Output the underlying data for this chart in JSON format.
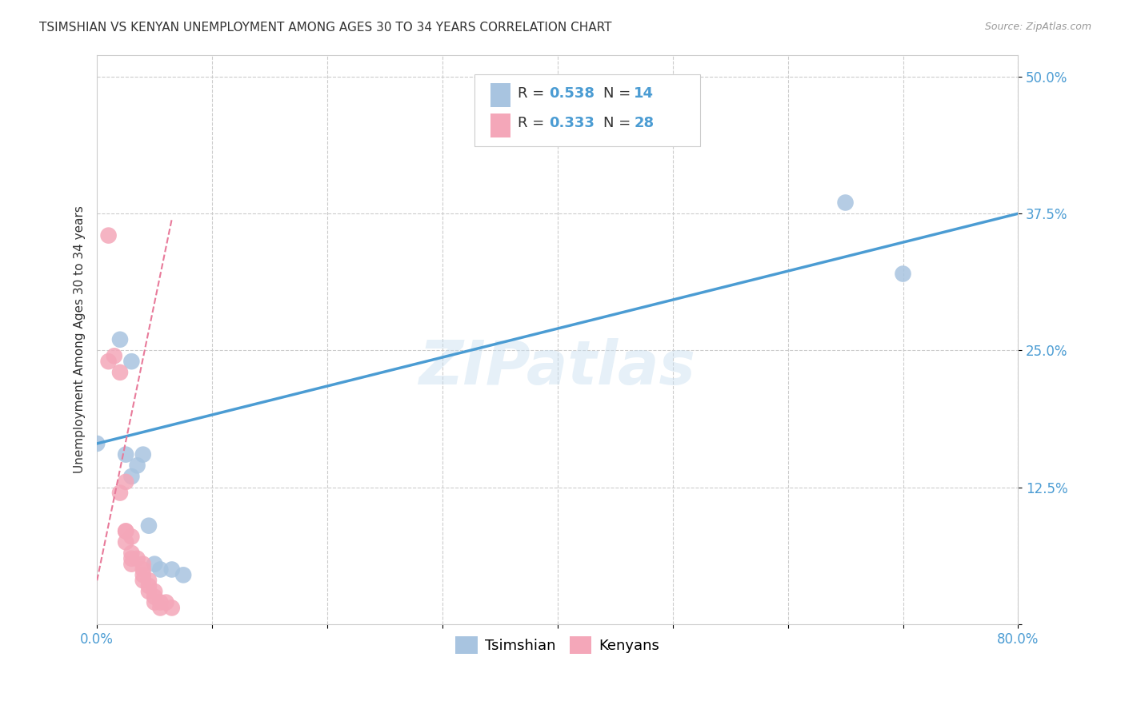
{
  "title": "TSIMSHIAN VS KENYAN UNEMPLOYMENT AMONG AGES 30 TO 34 YEARS CORRELATION CHART",
  "source": "Source: ZipAtlas.com",
  "ylabel": "Unemployment Among Ages 30 to 34 years",
  "xlim": [
    0.0,
    0.8
  ],
  "ylim": [
    0.0,
    0.52
  ],
  "xticks": [
    0.0,
    0.1,
    0.2,
    0.3,
    0.4,
    0.5,
    0.6,
    0.7,
    0.8
  ],
  "xticklabels": [
    "0.0%",
    "",
    "",
    "",
    "",
    "",
    "",
    "",
    "80.0%"
  ],
  "ytick_positions": [
    0.0,
    0.125,
    0.25,
    0.375,
    0.5
  ],
  "yticklabels": [
    "",
    "12.5%",
    "25.0%",
    "37.5%",
    "50.0%"
  ],
  "grid_color": "#cccccc",
  "background_color": "#ffffff",
  "tsimshian_color": "#a8c4e0",
  "kenyan_color": "#f4a7b9",
  "tsimshian_line_color": "#4b9cd3",
  "kenyan_line_color": "#e87a9a",
  "watermark": "ZIPatlas",
  "tsimshian_scatter": [
    [
      0.0,
      0.165
    ],
    [
      0.02,
      0.26
    ],
    [
      0.025,
      0.155
    ],
    [
      0.03,
      0.135
    ],
    [
      0.03,
      0.24
    ],
    [
      0.035,
      0.145
    ],
    [
      0.04,
      0.155
    ],
    [
      0.045,
      0.09
    ],
    [
      0.05,
      0.055
    ],
    [
      0.055,
      0.05
    ],
    [
      0.065,
      0.05
    ],
    [
      0.075,
      0.045
    ],
    [
      0.65,
      0.385
    ],
    [
      0.7,
      0.32
    ]
  ],
  "kenyan_scatter": [
    [
      0.01,
      0.355
    ],
    [
      0.01,
      0.24
    ],
    [
      0.015,
      0.245
    ],
    [
      0.02,
      0.23
    ],
    [
      0.02,
      0.12
    ],
    [
      0.025,
      0.13
    ],
    [
      0.025,
      0.085
    ],
    [
      0.025,
      0.085
    ],
    [
      0.025,
      0.075
    ],
    [
      0.03,
      0.08
    ],
    [
      0.03,
      0.065
    ],
    [
      0.03,
      0.06
    ],
    [
      0.03,
      0.055
    ],
    [
      0.035,
      0.06
    ],
    [
      0.04,
      0.055
    ],
    [
      0.04,
      0.05
    ],
    [
      0.04,
      0.045
    ],
    [
      0.04,
      0.04
    ],
    [
      0.045,
      0.04
    ],
    [
      0.045,
      0.035
    ],
    [
      0.045,
      0.03
    ],
    [
      0.05,
      0.03
    ],
    [
      0.05,
      0.025
    ],
    [
      0.05,
      0.02
    ],
    [
      0.055,
      0.02
    ],
    [
      0.055,
      0.015
    ],
    [
      0.06,
      0.02
    ],
    [
      0.065,
      0.015
    ]
  ],
  "tsimshian_line": [
    [
      0.0,
      0.165
    ],
    [
      0.8,
      0.375
    ]
  ],
  "kenyan_line": [
    [
      0.0,
      0.04
    ],
    [
      0.065,
      0.37
    ]
  ],
  "title_fontsize": 11,
  "axis_label_fontsize": 11,
  "tick_fontsize": 12,
  "legend_text_color": "#4b9cd3"
}
